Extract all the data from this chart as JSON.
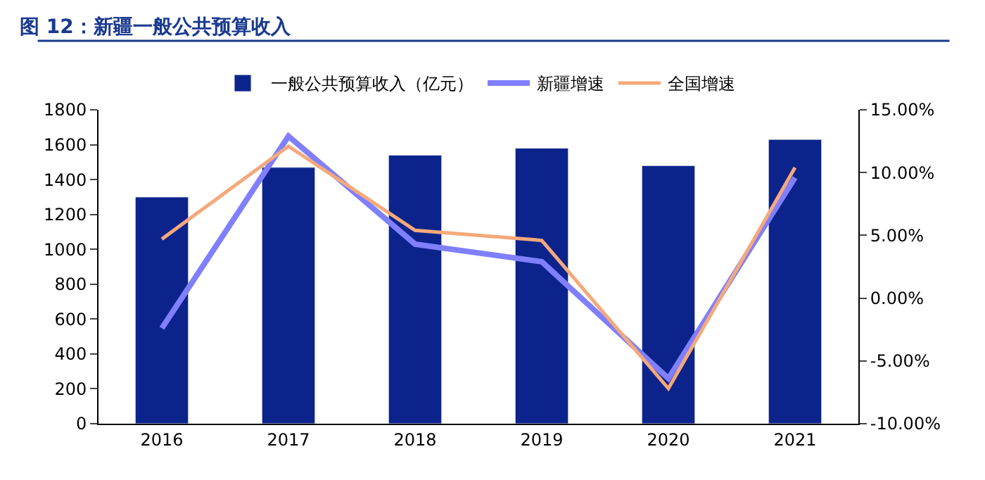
{
  "chart_data": {
    "type": "bar",
    "title": "图 12：新疆一般公共预算收入",
    "categories": [
      "2016",
      "2017",
      "2018",
      "2019",
      "2020",
      "2021"
    ],
    "series": [
      {
        "name": "一般公共预算收入（亿元）",
        "color": "#0d238c",
        "values": [
          1300,
          1470,
          1540,
          1580,
          1480,
          1630
        ]
      },
      {
        "name": "新疆增速",
        "type": "line",
        "axis": "y2",
        "color": "#7f7fff",
        "values": [
          -2.4,
          12.9,
          4.3,
          2.9,
          -6.4,
          9.6
        ]
      },
      {
        "name": "全国增速",
        "type": "line",
        "axis": "y2",
        "color": "#f4a97a",
        "values": [
          4.7,
          12.1,
          5.4,
          4.6,
          -7.2,
          10.4
        ]
      }
    ],
    "ylim": [
      0,
      1800
    ],
    "yticks": [
      0,
      200,
      400,
      600,
      800,
      1000,
      1200,
      1400,
      1600,
      1800
    ],
    "y2lim": [
      -10,
      15
    ],
    "y2ticks": [
      {
        "value": -10,
        "label": "-10.00%"
      },
      {
        "value": -5,
        "label": "-5.00%"
      },
      {
        "value": 0,
        "label": "0.00%"
      },
      {
        "value": 5,
        "label": "5.00%"
      },
      {
        "value": 10,
        "label": "10.00%"
      },
      {
        "value": 15,
        "label": "15.00%"
      }
    ],
    "legend": "top"
  }
}
